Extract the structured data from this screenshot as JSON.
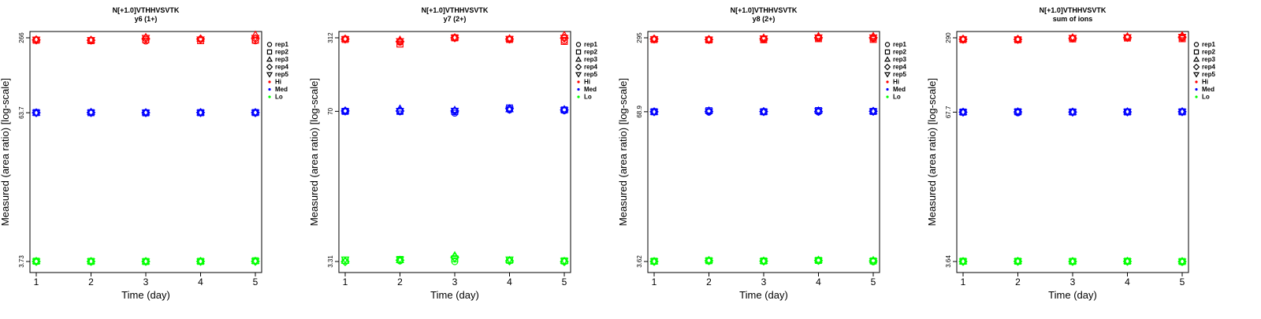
{
  "colors": {
    "Hi": "#ff0000",
    "Med": "#0000ff",
    "Lo": "#00ff00",
    "axis": "#000000"
  },
  "chart_data": [
    {
      "type": "scatter",
      "title": "N[+1.0]VTHHVSVTK",
      "subtitle": "y6 (1+)",
      "xlabel": "Time (day)",
      "ylabel": "Measured (area ratio) [log-scale]",
      "y_scale": "log",
      "x": [
        1,
        2,
        3,
        4,
        5
      ],
      "yticks": [
        3.73,
        63.7,
        266
      ],
      "ylim": [
        3.73,
        266
      ],
      "legend_position": "right",
      "series": [
        {
          "name": "Hi",
          "rep1": [
            257,
            254,
            250,
            258,
            251
          ],
          "rep2": [
            254,
            252,
            256,
            252,
            254
          ],
          "rep3": [
            258,
            255,
            270,
            262,
            282
          ],
          "rep4": [
            255,
            254,
            262,
            260,
            262
          ],
          "rep5": [
            257,
            255,
            266,
            258,
            266
          ]
        },
        {
          "name": "Med",
          "rep1": [
            63.7,
            63.6,
            63.8,
            63.7,
            63.5
          ],
          "rep2": [
            63.9,
            63.8,
            63.6,
            63.8,
            63.9
          ],
          "rep3": [
            63.7,
            64.6,
            64.1,
            64.0,
            64.2
          ],
          "rep4": [
            63.7,
            63.9,
            63.7,
            63.9,
            63.8
          ],
          "rep5": [
            63.5,
            63.7,
            63.8,
            63.7,
            63.7
          ]
        },
        {
          "name": "Lo",
          "rep1": [
            3.73,
            3.71,
            3.72,
            3.73,
            3.74
          ],
          "rep2": [
            3.75,
            3.74,
            3.73,
            3.74,
            3.78
          ],
          "rep3": [
            3.76,
            3.75,
            3.74,
            3.75,
            3.77
          ],
          "rep4": [
            3.73,
            3.73,
            3.73,
            3.74,
            3.74
          ],
          "rep5": [
            3.72,
            3.74,
            3.73,
            3.73,
            3.74
          ]
        }
      ]
    },
    {
      "type": "scatter",
      "title": "N[+1.0]VTHHVSVTK",
      "subtitle": "y7 (2+)",
      "xlabel": "Time (day)",
      "ylabel": "Measured (area ratio) [log-scale]",
      "y_scale": "log",
      "x": [
        1,
        2,
        3,
        4,
        5
      ],
      "yticks": [
        3.31,
        70,
        312
      ],
      "ylim": [
        3.31,
        312
      ],
      "legend_position": "right",
      "series": [
        {
          "name": "Hi",
          "rep1": [
            305,
            285,
            310,
            300,
            295
          ],
          "rep2": [
            302,
            275,
            312,
            302,
            290
          ],
          "rep3": [
            306,
            300,
            314,
            308,
            330
          ],
          "rep4": [
            304,
            290,
            312,
            304,
            310
          ],
          "rep5": [
            303,
            292,
            313,
            305,
            312
          ]
        },
        {
          "name": "Med",
          "rep1": [
            70,
            69.5,
            67.5,
            72,
            71
          ],
          "rep2": [
            70,
            70,
            69.8,
            75,
            72
          ],
          "rep3": [
            71,
            74,
            72,
            73,
            73
          ],
          "rep4": [
            70.5,
            70.5,
            70.5,
            74,
            72
          ],
          "rep5": [
            70,
            70.5,
            71,
            72.5,
            71.5
          ]
        },
        {
          "name": "Lo",
          "rep1": [
            3.3,
            3.35,
            3.3,
            3.35,
            3.3
          ],
          "rep2": [
            3.4,
            3.45,
            3.5,
            3.4,
            3.35
          ],
          "rep3": [
            3.35,
            3.4,
            3.75,
            3.4,
            3.35
          ],
          "rep4": [
            3.3,
            3.4,
            3.6,
            3.35,
            3.3
          ],
          "rep5": [
            3.45,
            3.45,
            3.5,
            3.45,
            3.35
          ]
        }
      ]
    },
    {
      "type": "scatter",
      "title": "N[+1.0]VTHHVSVTK",
      "subtitle": "y8 (2+)",
      "xlabel": "Time (day)",
      "ylabel": "Measured (area ratio) [log-scale]",
      "y_scale": "log",
      "x": [
        1,
        2,
        3,
        4,
        5
      ],
      "yticks": [
        3.62,
        68.9,
        295
      ],
      "ylim": [
        3.62,
        295
      ],
      "legend_position": "right",
      "series": [
        {
          "name": "Hi",
          "rep1": [
            286,
            284,
            286,
            292,
            290
          ],
          "rep2": [
            285,
            283,
            284,
            290,
            286
          ],
          "rep3": [
            289,
            286,
            296,
            305,
            305
          ],
          "rep4": [
            288,
            285,
            290,
            296,
            296
          ],
          "rep5": [
            287,
            285,
            292,
            298,
            298
          ]
        },
        {
          "name": "Med",
          "rep1": [
            68.7,
            68.3,
            68.7,
            68.5,
            69.5
          ],
          "rep2": [
            68.9,
            70.3,
            68.9,
            70.5,
            69.3
          ],
          "rep3": [
            68.8,
            70.6,
            69.1,
            70.6,
            69.6
          ],
          "rep4": [
            68.9,
            69.4,
            69.1,
            69.3,
            69.5
          ],
          "rep5": [
            68.7,
            69.3,
            68.8,
            69.8,
            69.4
          ]
        },
        {
          "name": "Lo",
          "rep1": [
            3.62,
            3.65,
            3.63,
            3.66,
            3.6
          ],
          "rep2": [
            3.64,
            3.68,
            3.66,
            3.7,
            3.66
          ],
          "rep3": [
            3.63,
            3.72,
            3.66,
            3.74,
            3.72
          ],
          "rep4": [
            3.62,
            3.68,
            3.65,
            3.7,
            3.66
          ],
          "rep5": [
            3.63,
            3.67,
            3.64,
            3.68,
            3.64
          ]
        }
      ]
    },
    {
      "type": "scatter",
      "title": "N[+1.0]VTHHVSVTK",
      "subtitle": "sum of ions",
      "xlabel": "Time (day)",
      "ylabel": "Measured (area ratio) [log-scale]",
      "y_scale": "log",
      "x": [
        1,
        2,
        3,
        4,
        5
      ],
      "yticks": [
        3.64,
        67.7,
        290
      ],
      "ylim": [
        3.64,
        290
      ],
      "legend_position": "right",
      "series": [
        {
          "name": "Hi",
          "rep1": [
            281,
            280,
            286,
            290,
            288
          ],
          "rep2": [
            280,
            279,
            284,
            289,
            285
          ],
          "rep3": [
            284,
            283,
            292,
            298,
            304
          ],
          "rep4": [
            282,
            281,
            288,
            292,
            294
          ],
          "rep5": [
            281,
            280,
            290,
            293,
            296
          ]
        },
        {
          "name": "Med",
          "rep1": [
            67.5,
            66.8,
            67.7,
            67.7,
            67.9
          ],
          "rep2": [
            67.8,
            68.2,
            67.9,
            68.0,
            68.1
          ],
          "rep3": [
            67.9,
            68.6,
            68.0,
            68.4,
            68.5
          ],
          "rep4": [
            67.7,
            68.0,
            67.8,
            68.0,
            68.2
          ],
          "rep5": [
            67.6,
            68.2,
            67.9,
            68.2,
            68.3
          ]
        },
        {
          "name": "Lo",
          "rep1": [
            3.64,
            3.64,
            3.63,
            3.64,
            3.6
          ],
          "rep2": [
            3.66,
            3.66,
            3.65,
            3.66,
            3.64
          ],
          "rep3": [
            3.65,
            3.67,
            3.66,
            3.67,
            3.66
          ],
          "rep4": [
            3.64,
            3.65,
            3.64,
            3.65,
            3.63
          ],
          "rep5": [
            3.64,
            3.65,
            3.64,
            3.65,
            3.63
          ]
        }
      ]
    }
  ],
  "legend": {
    "items": [
      {
        "label": "rep1",
        "marker": "circle"
      },
      {
        "label": "rep2",
        "marker": "square"
      },
      {
        "label": "rep3",
        "marker": "triangle-up"
      },
      {
        "label": "rep4",
        "marker": "diamond"
      },
      {
        "label": "rep5",
        "marker": "triangle-down"
      },
      {
        "label": "Hi",
        "marker": "dot",
        "color": "#ff0000"
      },
      {
        "label": "Med",
        "marker": "dot",
        "color": "#0000ff"
      },
      {
        "label": "Lo",
        "marker": "dot",
        "color": "#00ff00"
      }
    ]
  }
}
